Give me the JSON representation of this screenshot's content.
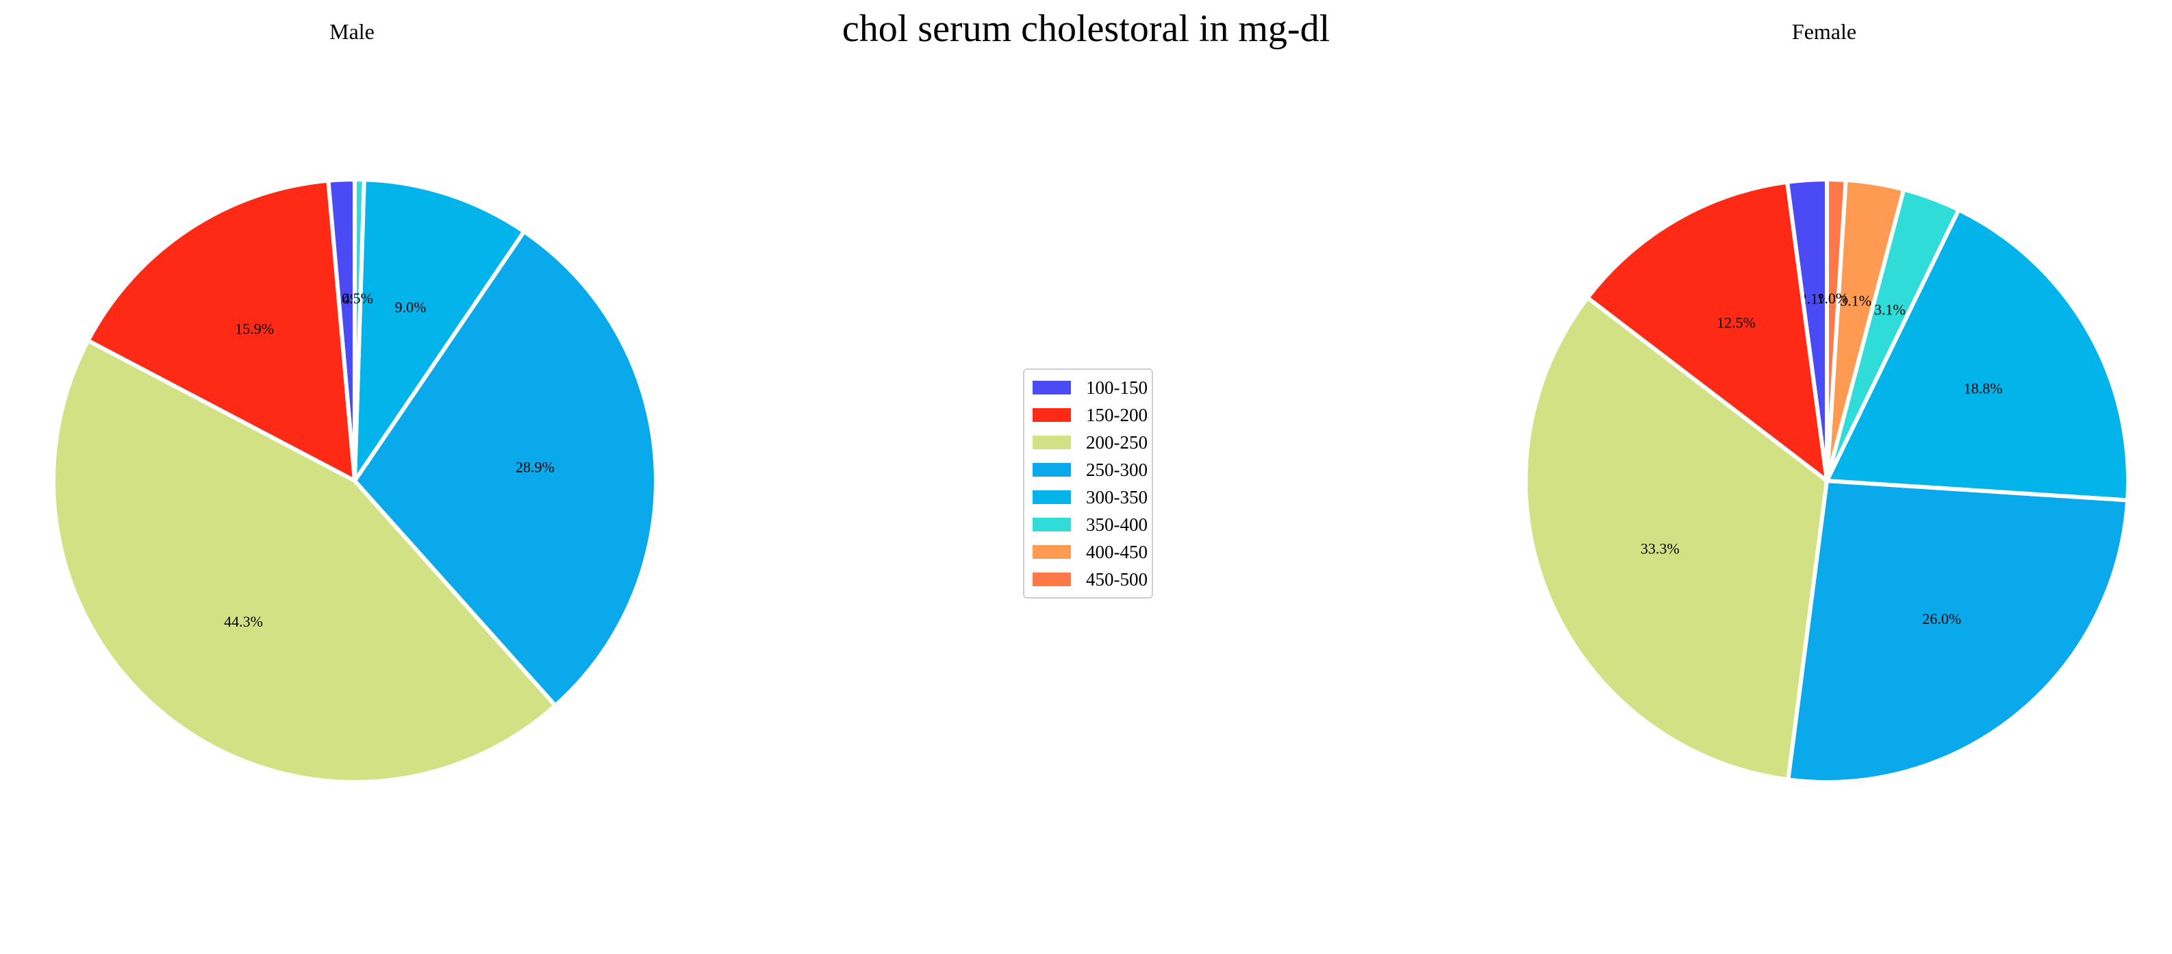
{
  "chart_data": {
    "type": "pie",
    "title": "chol serum cholestoral in mg-dl",
    "categories": [
      "100-150",
      "150-200",
      "200-250",
      "250-300",
      "300-350",
      "350-400",
      "400-450",
      "450-500"
    ],
    "colors": [
      "#4b4bf6",
      "#ff2a16",
      "#d2e184",
      "#0aa9ec",
      "#02b4e9",
      "#2fdcd8",
      "#ff9a52",
      "#ff7847"
    ],
    "legend_placement": "center",
    "charts": [
      {
        "name": "Male",
        "values": [
          1.4,
          15.9,
          44.3,
          28.9,
          9.0,
          0.5,
          0.0,
          0.0
        ],
        "labels": [
          "1.4%",
          "15.9%",
          "44.3%",
          "28.9%",
          "9.0%",
          "0.5%",
          "",
          ""
        ]
      },
      {
        "name": "Female",
        "values": [
          2.1,
          12.5,
          33.3,
          26.0,
          18.8,
          3.1,
          3.1,
          1.0
        ],
        "labels": [
          "2.1%",
          "12.5%",
          "33.3%",
          "26.0%",
          "18.8%",
          "3.1%",
          "3.1%",
          "1.0%"
        ]
      }
    ]
  }
}
